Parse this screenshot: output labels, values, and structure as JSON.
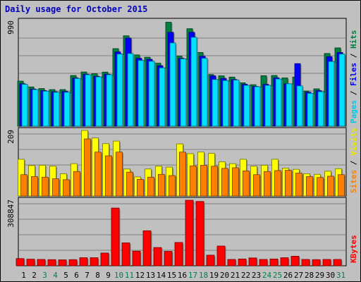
{
  "chart_data": {
    "type": "bar",
    "title": "Daily usage for October 2015",
    "categories": [
      "1",
      "2",
      "3",
      "4",
      "5",
      "6",
      "7",
      "8",
      "9",
      "10",
      "11",
      "12",
      "13",
      "14",
      "15",
      "16",
      "17",
      "18",
      "19",
      "20",
      "21",
      "22",
      "23",
      "24",
      "25",
      "26",
      "27",
      "28",
      "29",
      "30",
      "31"
    ],
    "weekend_days": [
      "3",
      "4",
      "10",
      "11",
      "17",
      "18",
      "24",
      "25",
      "31"
    ],
    "panels": [
      {
        "id": "hits-files-pages",
        "axis_max_label": "990",
        "ylim": [
          0,
          990
        ],
        "legend": [
          "Pages",
          "Files",
          "Hits"
        ],
        "series": [
          {
            "name": "Hits",
            "color": "#008040",
            "values": [
              425,
              370,
              355,
              345,
              345,
              478,
              511,
              495,
              510,
              731,
              852,
              672,
              650,
              594,
              980,
              661,
              919,
              695,
              487,
              475,
              463,
              409,
              391,
              476,
              478,
              455,
              463,
              331,
              352,
              685,
              738
            ]
          },
          {
            "name": "Files",
            "color": "#0000ff",
            "values": [
              400,
              350,
              335,
              325,
              328,
              455,
              490,
              470,
              490,
              700,
              830,
              640,
              630,
              570,
              885,
              640,
              885,
              660,
              475,
              450,
              440,
              395,
              375,
              395,
              455,
              400,
              590,
              320,
              335,
              655,
              695
            ]
          },
          {
            "name": "Pages",
            "color": "#00e0ff",
            "values": [
              395,
              345,
              330,
              320,
              320,
              450,
              485,
              465,
              485,
              680,
              685,
              620,
              612,
              550,
              785,
              635,
              838,
              640,
              440,
              430,
              435,
              385,
              372,
              385,
              445,
              400,
              380,
              310,
              325,
              610,
              680
            ]
          }
        ]
      },
      {
        "id": "visits-sites",
        "axis_max_label": "209",
        "ylim": [
          0,
          209
        ],
        "legend": [
          "Sites",
          "Visits"
        ],
        "series": [
          {
            "name": "Visits",
            "color": "#ffff00",
            "values": [
              117,
              97,
              98,
              95,
              71,
              103,
              209,
              185,
              167,
              175,
              86,
              61,
              86,
              95,
              92,
              166,
              135,
              140,
              136,
              109,
              103,
              117,
              95,
              98,
              117,
              89,
              85,
              71,
              69,
              79,
              87
            ]
          },
          {
            "name": "Sites",
            "color": "#ff8000",
            "values": [
              68,
              62,
              60,
              55,
              52,
              78,
              182,
              140,
              128,
              140,
              76,
              53,
              60,
              69,
              65,
              140,
              96,
              98,
              95,
              88,
              90,
              80,
              68,
              78,
              81,
              82,
              73,
              62,
              59,
              63,
              68
            ]
          }
        ]
      },
      {
        "id": "kbytes",
        "axis_max_label": "308847",
        "ylim": [
          0,
          308847
        ],
        "legend": [
          "KBytes"
        ],
        "series": [
          {
            "name": "KBytes",
            "color": "#ff0000",
            "values": [
              34000,
              31000,
              30000,
              29000,
              28000,
              29000,
              38000,
              38000,
              60000,
              272000,
              108000,
              69000,
              165000,
              86000,
              68000,
              110000,
              308847,
              303000,
              50000,
              93000,
              30000,
              32000,
              37000,
              30000,
              32000,
              38000,
              45000,
              30000,
              29000,
              30000,
              30000
            ]
          }
        ]
      }
    ]
  }
}
